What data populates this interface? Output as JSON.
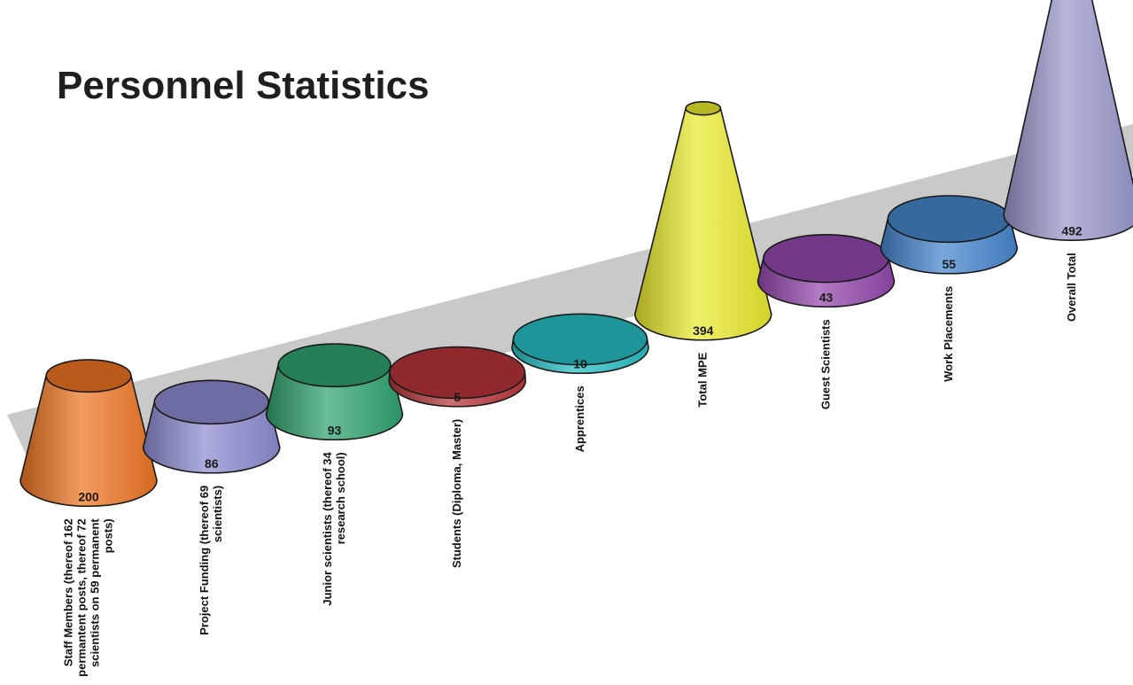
{
  "chart_data": {
    "type": "bar",
    "title": "Personnel Statistics",
    "categories": [
      [
        "Staff Members (thereof 162",
        "permantent posts, thereof 72",
        "scientists on 59 permanent",
        "posts)"
      ],
      [
        "Project Funding (thereof 69",
        "scientists)"
      ],
      [
        "Junior scientists (thereof 34",
        "research school)"
      ],
      [
        "Students (Diploma, Master)"
      ],
      [
        "Apprentices"
      ],
      [
        "Total MPE"
      ],
      [
        "Guest Scientists"
      ],
      [
        "Work Placements"
      ],
      [
        "Overall Total"
      ]
    ],
    "values": [
      200,
      86,
      93,
      5,
      10,
      394,
      43,
      55,
      492
    ],
    "value_labels": [
      "200",
      "86",
      "93",
      "5",
      "10",
      "394",
      "43",
      "55",
      "492"
    ],
    "colors": [
      "#ee7524",
      "#8c8cd2",
      "#2fa36e",
      "#b8343a",
      "#27bfc4",
      "#eaea2e",
      "#9448ad",
      "#4686cf",
      "#9898cc"
    ],
    "floor_color": "#c9c9c9",
    "xlabel": "",
    "ylabel": ""
  }
}
